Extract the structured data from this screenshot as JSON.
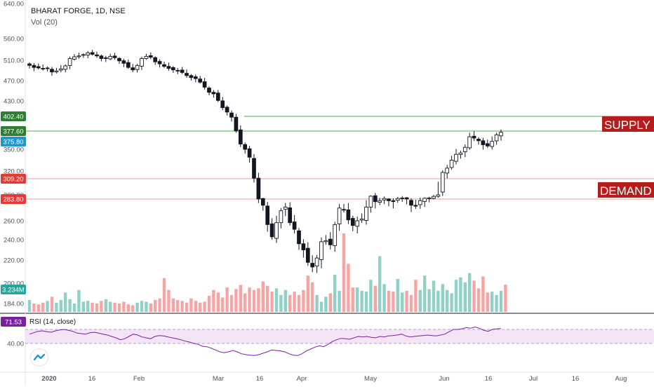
{
  "header": {
    "symbol_line": "BHARAT FORGE, 1D, NSE",
    "volume_line": "Vol (20)"
  },
  "price_axis": {
    "labels": [
      "640.00",
      "560.00",
      "510.00",
      "470.00",
      "430.00",
      "350.00",
      "320.00",
      "300.00",
      "260.00",
      "240.00",
      "220.00",
      "200.00",
      "184.00"
    ],
    "values": [
      640,
      560,
      510,
      470,
      430,
      350,
      320,
      300,
      260,
      240,
      220,
      200,
      184
    ]
  },
  "tags": {
    "supply_top": {
      "text": "402.40",
      "value": 402.4,
      "color": "#2e7d32"
    },
    "supply_bottom": {
      "text": "377.60",
      "value": 377.6,
      "color": "#2e7d32"
    },
    "last_price": {
      "text": "375.80",
      "value": 375.8,
      "color": "#2196c8"
    },
    "demand_top": {
      "text": "309.20",
      "value": 309.2,
      "color": "#e53935"
    },
    "demand_bottom": {
      "text": "283.80",
      "value": 283.8,
      "color": "#e53935"
    },
    "volume": {
      "text": "3.234M",
      "color": "#26a69a"
    },
    "rsi": {
      "text": "71.53",
      "color": "#7b1fa2"
    }
  },
  "zones": {
    "supply_label": "SUPPLY ZO",
    "demand_label": "DEMAND Z",
    "zone_label_color": "#b71c1c"
  },
  "rsi_panel": {
    "title": "RSI (14, close)",
    "level_label": "40.00",
    "rsi_series": [
      60,
      63,
      66,
      67,
      65,
      64,
      67,
      69,
      70,
      68,
      66,
      62,
      61,
      60,
      63,
      64,
      62,
      60,
      58,
      55,
      52,
      48,
      50,
      55,
      60,
      58,
      54,
      52,
      50,
      55,
      57,
      56,
      54,
      52,
      50,
      48,
      45,
      43,
      40,
      38,
      34,
      33,
      30,
      26,
      22,
      20,
      22,
      25,
      22,
      18,
      16,
      15,
      14,
      16,
      19,
      22,
      26,
      25,
      24,
      22,
      18,
      15,
      14,
      18,
      24,
      28,
      32,
      35,
      33,
      38,
      44,
      48,
      51,
      50,
      49,
      52,
      55,
      54,
      55,
      53,
      52,
      55,
      54,
      56,
      57,
      58,
      60,
      56,
      54,
      55,
      56,
      57,
      58,
      57,
      56,
      58,
      60,
      65,
      70,
      70,
      71,
      73,
      72,
      74,
      72,
      68,
      66,
      70,
      71,
      71.53
    ]
  },
  "time_axis": {
    "labels": [
      "2020",
      "16",
      "Feb",
      "Mar",
      "16",
      "Apr",
      "May",
      "Jun",
      "16",
      "Jul",
      "16",
      "Aug"
    ]
  },
  "chart_data": {
    "type": "candlestick",
    "title": "BHARAT FORGE, 1D, NSE",
    "x_labels": [
      "2020",
      "16",
      "Feb",
      "Mar",
      "16",
      "Apr",
      "May",
      "Jun",
      "16",
      "Jul",
      "16",
      "Aug"
    ],
    "price_close": [
      500,
      496,
      495,
      494,
      494,
      487,
      489,
      493,
      499,
      514,
      518,
      520,
      523,
      527,
      524,
      520,
      514,
      514,
      519,
      516,
      509,
      504,
      496,
      491,
      500,
      514,
      519,
      517,
      507,
      503,
      498,
      494,
      491,
      490,
      486,
      480,
      476,
      474,
      467,
      457,
      447,
      444,
      431,
      418,
      410,
      401,
      378,
      358,
      350,
      339,
      310,
      284,
      277,
      256,
      243,
      258,
      271,
      275,
      258,
      251,
      236,
      230,
      218,
      214,
      222,
      238,
      239,
      235,
      256,
      274,
      272,
      261,
      255,
      260,
      262,
      275,
      295,
      281,
      282,
      286,
      282,
      281,
      286,
      288,
      284,
      277,
      276,
      282,
      287,
      288,
      294,
      300,
      318,
      324,
      335,
      343,
      345,
      353,
      369,
      367,
      363,
      357,
      355,
      362,
      372,
      375.8
    ],
    "volume": [
      1.4,
      1.0,
      0.9,
      1.1,
      1.3,
      1.8,
      1.1,
      1.4,
      2.3,
      1.5,
      1.0,
      2.6,
      1.2,
      1.3,
      1.1,
      1.0,
      1.3,
      1.5,
      1.2,
      1.1,
      1.0,
      1.2,
      0.9,
      0.8,
      1.1,
      1.3,
      1.2,
      1.0,
      1.4,
      1.6,
      4.0,
      2.6,
      1.6,
      1.4,
      1.3,
      1.1,
      1.6,
      1.3,
      1.1,
      1.2,
      1.9,
      2.6,
      2.3,
      1.7,
      2.9,
      2.0,
      2.7,
      3.2,
      2.2,
      2.9,
      2.6,
      2.8,
      3.6,
      3.1,
      2.4,
      2.8,
      2.0,
      2.6,
      2.0,
      2.4,
      2.0,
      2.6,
      4.3,
      3.5,
      2.0,
      1.2,
      1.8,
      2.2,
      4.4,
      2.5,
      9.3,
      5.7,
      2.9,
      2.9,
      2.5,
      2.4,
      3.8,
      3.1,
      6.6,
      3.3,
      2.5,
      2.4,
      3.9,
      2.3,
      2.5,
      2.0,
      3.8,
      2.6,
      4.3,
      2.7,
      3.7,
      2.5,
      3.3,
      2.6,
      2.2,
      3.8,
      4.1,
      3.5,
      4.6,
      3.7,
      2.8,
      4.2,
      2.3,
      2.4,
      2.0,
      2.5,
      3.234
    ],
    "ylim": [
      174,
      650
    ],
    "supply_zone": [
      377.6,
      402.4
    ],
    "demand_zone": [
      283.8,
      309.2
    ],
    "last_price": 375.8,
    "volume_last": "3.234M",
    "rsi_last": 71.53
  }
}
